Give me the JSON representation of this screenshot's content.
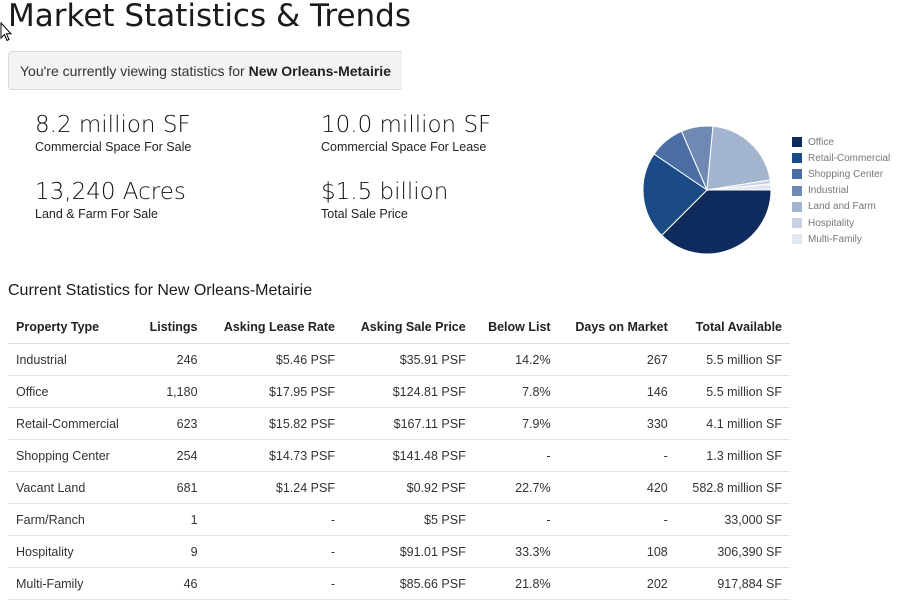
{
  "page": {
    "title": "Market Statistics & Trends",
    "viewing_prefix": "You're currently viewing statistics for ",
    "viewing_market": "New Orleans-Metairie"
  },
  "stats": [
    {
      "value": "8.2 million SF",
      "label": "Commercial Space For Sale"
    },
    {
      "value": "10.0 million SF",
      "label": "Commercial Space For Lease"
    },
    {
      "value": "13,240 Acres",
      "label": "Land & Farm For Sale"
    },
    {
      "value": "$1.5 billion",
      "label": "Total Sale Price"
    }
  ],
  "chart_data": {
    "type": "pie",
    "categories": [
      "Office",
      "Retail-Commercial",
      "Shopping Center",
      "Industrial",
      "Land and Farm",
      "Hospitality",
      "Multi-Family"
    ],
    "values": [
      37.5,
      22,
      9,
      8,
      21,
      1,
      1.5
    ],
    "colors": [
      "#0f2a5c",
      "#1a4b87",
      "#4a6ea3",
      "#6f89b4",
      "#a3b4cf",
      "#c9d2e2",
      "#e3e7ef"
    ],
    "legend_position": "right"
  },
  "table": {
    "title": "Current Statistics for New Orleans-Metairie",
    "headers": [
      "Property Type",
      "Listings",
      "Asking Lease Rate",
      "Asking Sale Price",
      "Below List",
      "Days on Market",
      "Total Available"
    ],
    "rows": [
      [
        "Industrial",
        "246",
        "$5.46 PSF",
        "$35.91 PSF",
        "14.2%",
        "267",
        "5.5 million SF"
      ],
      [
        "Office",
        "1,180",
        "$17.95 PSF",
        "$124.81 PSF",
        "7.8%",
        "146",
        "5.5 million SF"
      ],
      [
        "Retail-Commercial",
        "623",
        "$15.82 PSF",
        "$167.11 PSF",
        "7.9%",
        "330",
        "4.1 million SF"
      ],
      [
        "Shopping Center",
        "254",
        "$14.73 PSF",
        "$141.48 PSF",
        "-",
        "-",
        "1.3 million SF"
      ],
      [
        "Vacant Land",
        "681",
        "$1.24 PSF",
        "$0.92 PSF",
        "22.7%",
        "420",
        "582.8 million SF"
      ],
      [
        "Farm/Ranch",
        "1",
        "-",
        "$5 PSF",
        "-",
        "-",
        "33,000 SF"
      ],
      [
        "Hospitality",
        "9",
        "-",
        "$91.01 PSF",
        "33.3%",
        "108",
        "306,390 SF"
      ],
      [
        "Multi-Family",
        "46",
        "-",
        "$85.66 PSF",
        "21.8%",
        "202",
        "917,884 SF"
      ]
    ]
  }
}
